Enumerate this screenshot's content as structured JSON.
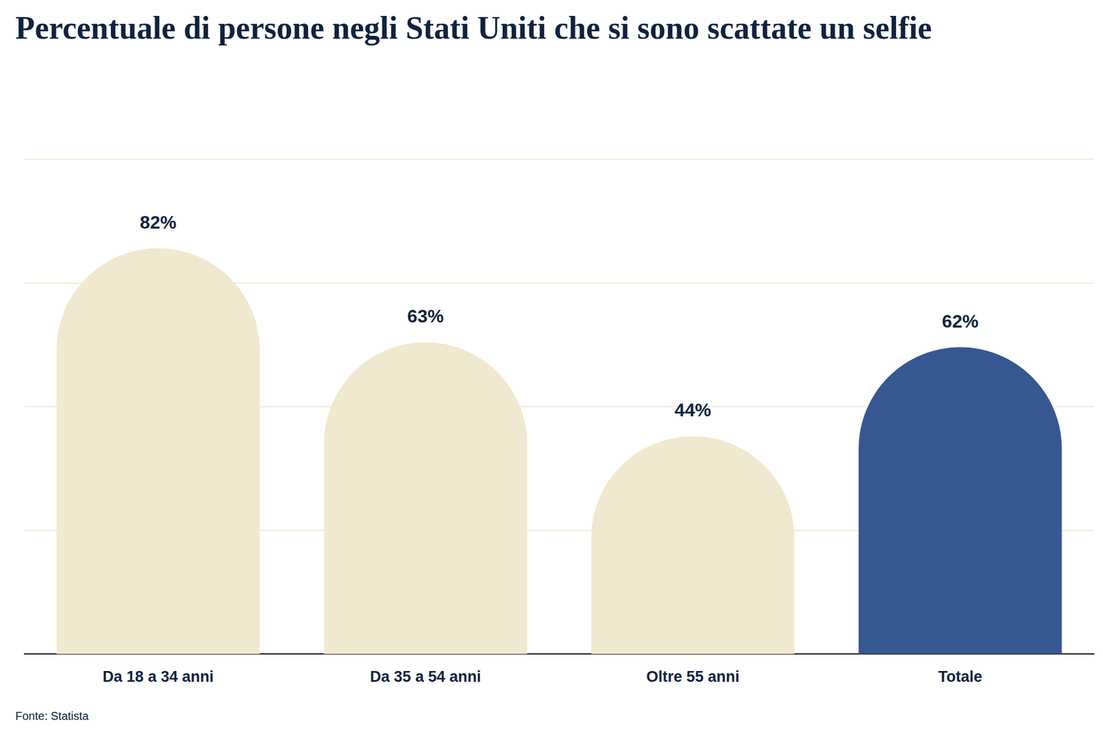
{
  "chart_data": {
    "type": "bar",
    "title": "Percentuale di persone negli Stati Uniti che si sono scattate un selfie",
    "source": "Fonte: Statista",
    "categories": [
      "Da 18 a 34 anni",
      "Da 35 a 54 anni",
      "Oltre 55 anni",
      "Totale"
    ],
    "values": [
      82,
      63,
      44,
      62
    ],
    "value_labels": [
      "82%",
      "63%",
      "44%",
      "62%"
    ],
    "colors": [
      "#f0e9cf",
      "#f0e9cf",
      "#f0e9cf",
      "#375793"
    ],
    "ylim": [
      0,
      100
    ],
    "yticks": [
      0,
      25,
      50,
      75,
      100
    ],
    "grid": true,
    "data_labels": true,
    "tick_labels": "x"
  }
}
